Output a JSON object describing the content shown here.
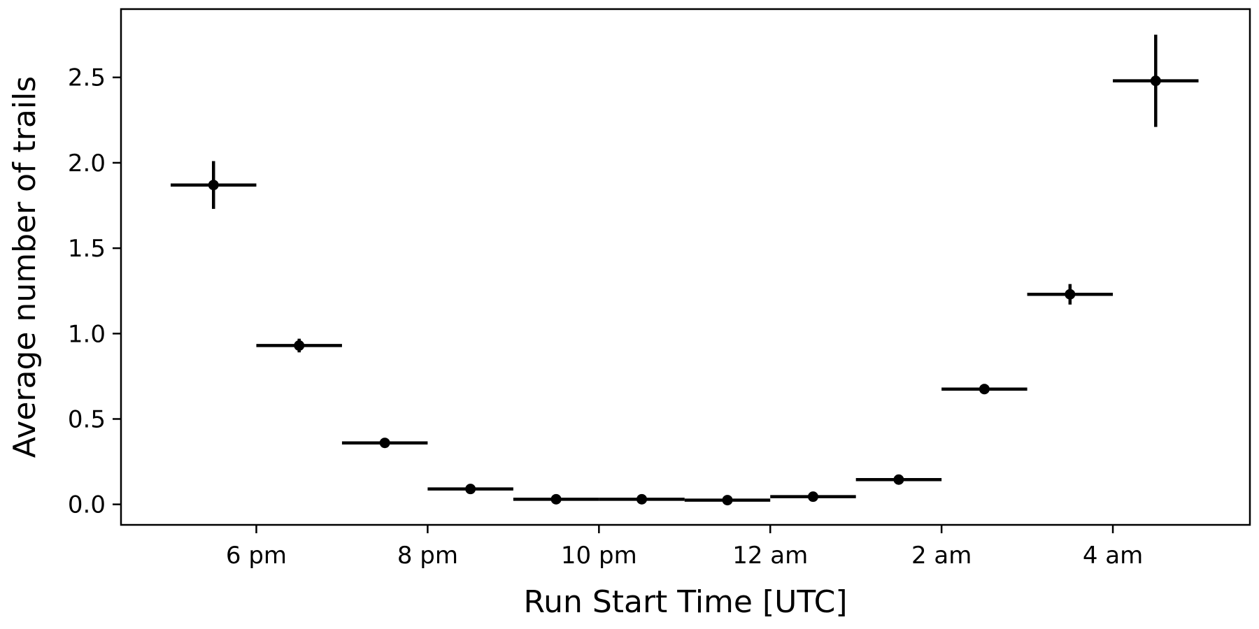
{
  "chart_data": {
    "type": "scatter",
    "title": "",
    "xlabel": "Run Start Time [UTC]",
    "ylabel": "Average number of trails",
    "x_unit": "hours",
    "x_ticks": [
      {
        "value": 18,
        "label": "6 pm"
      },
      {
        "value": 20,
        "label": "8 pm"
      },
      {
        "value": 22,
        "label": "10 pm"
      },
      {
        "value": 24,
        "label": "12 am"
      },
      {
        "value": 26,
        "label": "2 am"
      },
      {
        "value": 28,
        "label": "4 am"
      }
    ],
    "y_ticks": [
      {
        "value": 0.0,
        "label": "0.0"
      },
      {
        "value": 0.5,
        "label": "0.5"
      },
      {
        "value": 1.0,
        "label": "1.0"
      },
      {
        "value": 1.5,
        "label": "1.5"
      },
      {
        "value": 2.0,
        "label": "2.0"
      },
      {
        "value": 2.5,
        "label": "2.5"
      }
    ],
    "xlim": [
      16.42,
      29.6
    ],
    "ylim": [
      -0.12,
      2.9
    ],
    "grid": false,
    "points": [
      {
        "x_start": 17,
        "x_end": 18,
        "y": 1.87,
        "y_err": 0.14
      },
      {
        "x_start": 18,
        "x_end": 19,
        "y": 0.93,
        "y_err": 0.04
      },
      {
        "x_start": 19,
        "x_end": 20,
        "y": 0.36,
        "y_err": 0.01
      },
      {
        "x_start": 20,
        "x_end": 21,
        "y": 0.09,
        "y_err": 0.005
      },
      {
        "x_start": 21,
        "x_end": 22,
        "y": 0.03,
        "y_err": 0.003
      },
      {
        "x_start": 22,
        "x_end": 23,
        "y": 0.03,
        "y_err": 0.003
      },
      {
        "x_start": 23,
        "x_end": 24,
        "y": 0.025,
        "y_err": 0.003
      },
      {
        "x_start": 24,
        "x_end": 25,
        "y": 0.045,
        "y_err": 0.004
      },
      {
        "x_start": 25,
        "x_end": 26,
        "y": 0.145,
        "y_err": 0.008
      },
      {
        "x_start": 26,
        "x_end": 27,
        "y": 0.675,
        "y_err": 0.03
      },
      {
        "x_start": 27,
        "x_end": 28,
        "y": 1.23,
        "y_err": 0.06
      },
      {
        "x_start": 28,
        "x_end": 29,
        "y": 2.48,
        "y_err": 0.27
      }
    ],
    "colors": {
      "marker": "#000000",
      "axis": "#000000",
      "background": "#ffffff"
    }
  }
}
